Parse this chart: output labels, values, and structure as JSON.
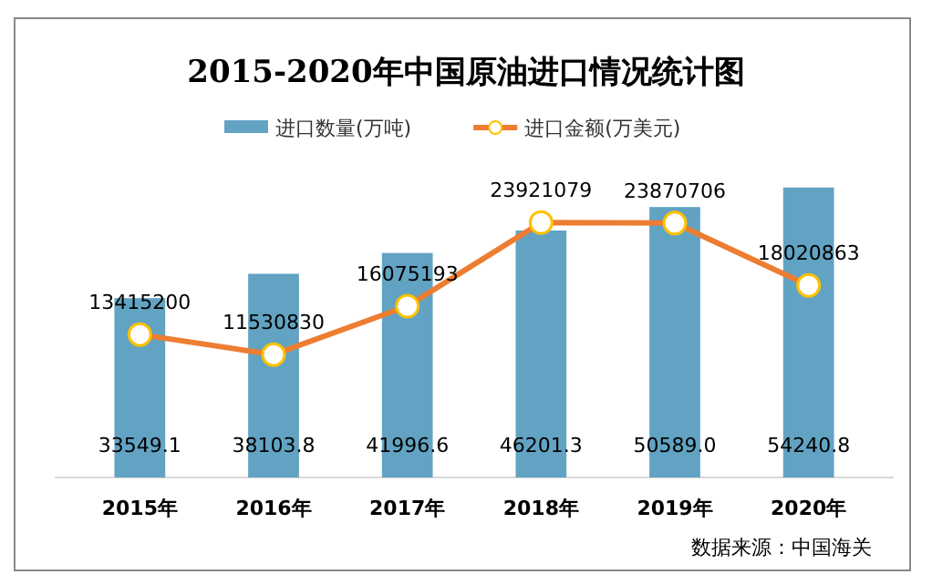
{
  "chart_data": {
    "type": "bar",
    "title": "2015-2020年中国原油进口情况统计图",
    "categories": [
      "2015年",
      "2016年",
      "2017年",
      "2018年",
      "2019年",
      "2020年"
    ],
    "series": [
      {
        "name": "进口数量(万吨)",
        "color": "#62a3c3",
        "values": [
          33549.1,
          38103.8,
          41996.6,
          46201.3,
          50589.0,
          54240.8
        ],
        "value_labels": [
          "33549.1",
          "38103.8",
          "41996.6",
          "46201.3",
          "50589.0",
          "54240.8"
        ]
      },
      {
        "name": "进口金额(万美元)",
        "type": "line",
        "axis": "y2",
        "color": "#ed7d31",
        "marker": "circle",
        "values": [
          13415200,
          11530830,
          16075193,
          23921079,
          23870706,
          18020863
        ]
      }
    ],
    "data_labels": true,
    "legend": "top",
    "annotations": [
      "数据来源：中国海关"
    ]
  }
}
